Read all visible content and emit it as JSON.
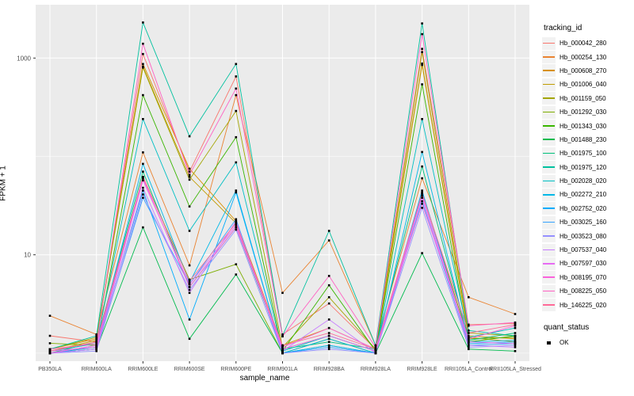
{
  "chart_data": {
    "type": "line",
    "title": "",
    "xlabel": "sample_name",
    "ylabel": "FPKM + 1",
    "y_scale": "log10",
    "y_ticks": [
      1000,
      10
    ],
    "y_tick_labels": [
      "1000",
      "10"
    ],
    "y_minor_ticks": [
      100,
      1
    ],
    "ylim": [
      0.85,
      2600
    ],
    "grid": "on",
    "legend_position": "right",
    "panel_bg": "#EBEBEB",
    "grid_color": "#FFFFFF",
    "point_color": "#000000",
    "tick_label_color": "#4D4D4D",
    "categories": [
      "PB350LA",
      "RRIM600LA",
      "RRIM600LE",
      "RRIM600SE",
      "RRIM600PE",
      "RRIM901LA",
      "RRIM928BA",
      "RRIM928LA",
      "RRIM928LE",
      "RRII105LA_Control",
      "RRII105LA_Stressed"
    ],
    "legend_title": "tracking_id",
    "quant_legend": {
      "title": "quant_status",
      "items": [
        "OK"
      ]
    },
    "series": [
      {
        "name": "Hb_000042_280",
        "color": "#F8766D",
        "values": [
          1.5,
          1.3,
          1100,
          70,
          650,
          1.55,
          3.2,
          1.1,
          1240,
          1.95,
          2.0
        ]
      },
      {
        "name": "Hb_000254_130",
        "color": "#EA8331",
        "values": [
          2.4,
          1.55,
          110,
          7.8,
          420,
          4.1,
          14,
          1.2,
          60,
          3.7,
          2.5
        ]
      },
      {
        "name": "Hb_000608_270",
        "color": "#D89000",
        "values": [
          1.1,
          1.4,
          870,
          75,
          22,
          1.2,
          1.8,
          1.1,
          880,
          1.5,
          1.4
        ]
      },
      {
        "name": "Hb_001006_040",
        "color": "#C09B00",
        "values": [
          1.05,
          1.35,
          820,
          62,
          21,
          1.1,
          1.5,
          1.05,
          850,
          1.45,
          1.3
        ]
      },
      {
        "name": "Hb_001159_050",
        "color": "#A3A500",
        "values": [
          1.1,
          1.45,
          800,
          58,
          290,
          1.15,
          3.7,
          1.1,
          1150,
          1.6,
          1.5
        ]
      },
      {
        "name": "Hb_001292_030",
        "color": "#7CAE00",
        "values": [
          1.26,
          1.2,
          62,
          5.6,
          8,
          1.0,
          1.4,
          1.0,
          43,
          1.4,
          1.45
        ]
      },
      {
        "name": "Hb_001343_030",
        "color": "#39B600",
        "values": [
          1.0,
          1.15,
          420,
          31,
          157,
          1.05,
          4.9,
          1.05,
          540,
          1.3,
          1.5
        ]
      },
      {
        "name": "Hb_001488_230",
        "color": "#00BB4E",
        "values": [
          1.0,
          1.1,
          19,
          1.4,
          6.3,
          1.0,
          1.2,
          1.0,
          10.4,
          1.1,
          1.05
        ]
      },
      {
        "name": "Hb_001975_100",
        "color": "#00C079",
        "values": [
          1.0,
          1.3,
          70,
          4.7,
          19,
          1.1,
          1.3,
          1.1,
          79,
          1.35,
          1.6
        ]
      },
      {
        "name": "Hb_001975_120",
        "color": "#00C19F",
        "values": [
          1.1,
          1.5,
          2300,
          160,
          870,
          1.5,
          17.5,
          1.2,
          2250,
          1.7,
          1.5
        ]
      },
      {
        "name": "Hb_002028_020",
        "color": "#00BFC4",
        "values": [
          1.05,
          1.25,
          240,
          17.5,
          87,
          1.05,
          1.5,
          1.05,
          240,
          1.45,
          1.8
        ]
      },
      {
        "name": "Hb_002272_210",
        "color": "#00B8E7",
        "values": [
          1.0,
          1.2,
          84,
          5.2,
          45,
          1.0,
          1.4,
          1.0,
          111,
          1.3,
          1.35
        ]
      },
      {
        "name": "Hb_002752_020",
        "color": "#00ACFC",
        "values": [
          1.0,
          1.15,
          45,
          2.2,
          43,
          1.0,
          1.2,
          1.0,
          45,
          1.25,
          1.3
        ]
      },
      {
        "name": "Hb_003025_160",
        "color": "#35A2FF",
        "values": [
          1.0,
          1.1,
          38,
          5.0,
          23,
          1.0,
          1.15,
          1.0,
          35,
          1.2,
          1.25
        ]
      },
      {
        "name": "Hb_003523_080",
        "color": "#9590FF",
        "values": [
          1.0,
          1.05,
          41,
          4.4,
          18,
          1.0,
          1.1,
          1.0,
          30,
          1.15,
          1.2
        ]
      },
      {
        "name": "Hb_007537_040",
        "color": "#C77CFF",
        "values": [
          1.0,
          1.1,
          48,
          4.1,
          22,
          1.05,
          2.2,
          1.0,
          38,
          1.2,
          1.15
        ]
      },
      {
        "name": "Hb_007597_030",
        "color": "#E76BF3",
        "values": [
          1.05,
          1.15,
          57,
          5.0,
          20,
          1.1,
          1.5,
          1.05,
          40,
          1.3,
          1.25
        ]
      },
      {
        "name": "Hb_008195_070",
        "color": "#FA62DB",
        "values": [
          1.0,
          1.2,
          60,
          4.7,
          19,
          1.15,
          1.8,
          1.1,
          33,
          1.4,
          1.9
        ]
      },
      {
        "name": "Hb_008225_050",
        "color": "#FF61C3",
        "values": [
          1.1,
          1.25,
          1400,
          65,
          490,
          1.48,
          6.1,
          1.15,
          1750,
          1.9,
          2.05
        ]
      },
      {
        "name": "Hb_146225_020",
        "color": "#FF6A98",
        "values": [
          1.05,
          1.3,
          62,
          5.4,
          21,
          1.2,
          1.6,
          1.1,
          42,
          1.6,
          1.95
        ]
      }
    ]
  }
}
